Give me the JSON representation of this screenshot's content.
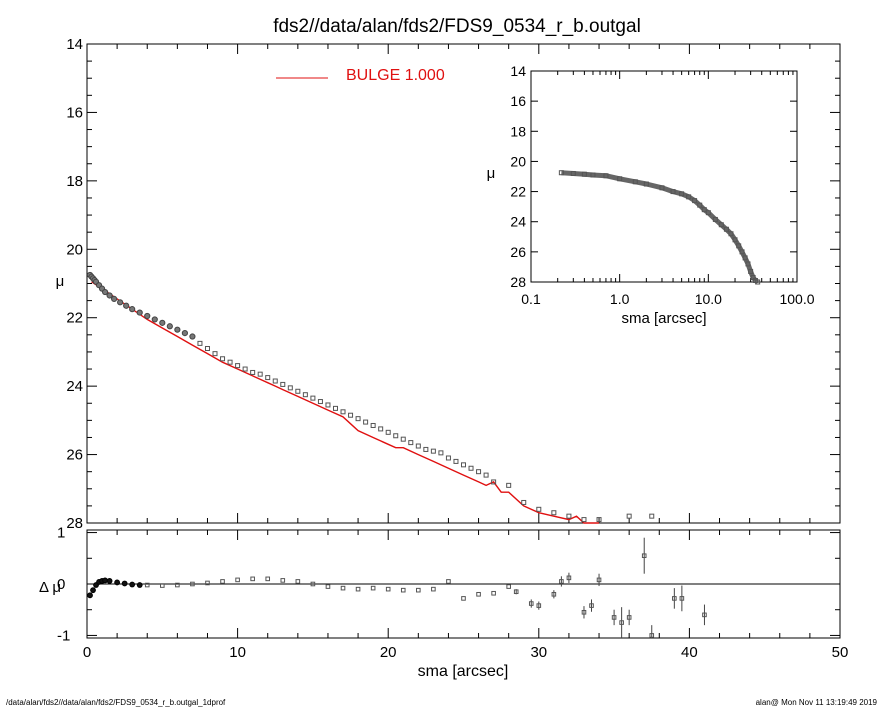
{
  "chart_data": [
    {
      "type": "scatter",
      "panel": "main",
      "title": "fds2//data/alan/fds2/FDS9_0534_r_b.outgal",
      "xlabel": "sma [arcsec]",
      "ylabel": "μ",
      "xlim": [
        0,
        50
      ],
      "ylim": [
        28,
        14
      ],
      "yticks": [
        "14",
        "16",
        "18",
        "20",
        "22",
        "24",
        "26",
        "28"
      ],
      "legend": {
        "label": "BULGE  1.000",
        "color": "#e01010",
        "placement": "top-center"
      },
      "series": [
        {
          "name": "observed profile",
          "x": [
            0.2,
            0.3,
            0.4,
            0.5,
            0.6,
            0.8,
            1.0,
            1.2,
            1.5,
            1.8,
            2.2,
            2.6,
            3.0,
            3.5,
            4.0,
            4.5,
            5.0,
            5.5,
            6.0,
            6.5,
            7.0,
            7.5,
            8.0,
            8.5,
            9.0,
            9.5,
            10.0,
            10.5,
            11.0,
            11.5,
            12.0,
            12.5,
            13.0,
            13.5,
            14.0,
            14.5,
            15.0,
            15.5,
            16.0,
            16.5,
            17.0,
            17.5,
            18.0,
            18.5,
            19.0,
            19.5,
            20.0,
            20.5,
            21.0,
            21.5,
            22.0,
            22.5,
            23.0,
            23.5,
            24.0,
            24.5,
            25.0,
            25.5,
            26.0,
            26.5,
            27.0,
            28.0,
            29.0,
            30.0,
            31.0,
            32.0,
            33.0,
            34.0,
            36.0,
            37.5
          ],
          "y": [
            20.75,
            20.8,
            20.85,
            20.9,
            20.95,
            21.05,
            21.15,
            21.25,
            21.35,
            21.45,
            21.55,
            21.65,
            21.75,
            21.85,
            21.95,
            22.05,
            22.15,
            22.25,
            22.35,
            22.45,
            22.55,
            22.75,
            22.9,
            23.05,
            23.2,
            23.3,
            23.4,
            23.5,
            23.6,
            23.65,
            23.75,
            23.85,
            23.95,
            24.05,
            24.15,
            24.25,
            24.35,
            24.45,
            24.55,
            24.65,
            24.75,
            24.85,
            24.95,
            25.05,
            25.15,
            25.25,
            25.35,
            25.45,
            25.55,
            25.65,
            25.75,
            25.85,
            25.9,
            25.95,
            26.1,
            26.2,
            26.3,
            26.4,
            26.5,
            26.6,
            26.8,
            26.9,
            27.4,
            27.6,
            27.7,
            27.8,
            27.9,
            27.9,
            27.8,
            27.8
          ]
        },
        {
          "name": "BULGE  1.000",
          "type": "line",
          "x": [
            0.3,
            1.0,
            2.0,
            3.0,
            4.0,
            5.0,
            6.0,
            7.0,
            8.0,
            9.0,
            10.0,
            11.0,
            12.0,
            12.5,
            13.0,
            14.0,
            15.0,
            16.0,
            17.0,
            17.5,
            18.0,
            19.0,
            20.0,
            20.5,
            21.0,
            22.0,
            23.0,
            24.0,
            25.0,
            26.0,
            26.5,
            27.0,
            27.5,
            28.0,
            29.0,
            30.0,
            31.0,
            32.0,
            32.5,
            33.0,
            34.0
          ],
          "y": [
            20.95,
            21.15,
            21.45,
            21.75,
            22.05,
            22.3,
            22.55,
            22.8,
            23.05,
            23.3,
            23.5,
            23.7,
            23.9,
            24.0,
            24.1,
            24.3,
            24.5,
            24.7,
            24.9,
            25.1,
            25.3,
            25.5,
            25.7,
            25.8,
            25.8,
            26.0,
            26.2,
            26.4,
            26.6,
            26.8,
            26.9,
            26.8,
            27.1,
            27.1,
            27.5,
            27.7,
            27.8,
            27.9,
            27.8,
            28.1,
            28.4
          ]
        }
      ]
    },
    {
      "type": "scatter",
      "panel": "inset",
      "xlabel": "sma [arcsec]",
      "ylabel": "μ",
      "xscale": "log",
      "xlim": [
        0.1,
        100
      ],
      "ylim": [
        28,
        14
      ],
      "xticks": [
        "0.1",
        "1.0",
        "10.0",
        "100.0"
      ],
      "yticks": [
        "14",
        "16",
        "18",
        "20",
        "22",
        "24",
        "26",
        "28"
      ],
      "series": [
        {
          "name": "observed profile (log)",
          "x": [
            0.22,
            0.3,
            0.4,
            0.5,
            0.7,
            1.0,
            1.5,
            2.0,
            3.0,
            4.0,
            5.0,
            6.0,
            7.0,
            8.0,
            9.0,
            10.0,
            12.0,
            14.0,
            16.0,
            18.0,
            20.0,
            22.0,
            24.0,
            26.0,
            28.0,
            30.0,
            32.0,
            34.0,
            36.0
          ],
          "y": [
            20.75,
            20.8,
            20.85,
            20.9,
            20.95,
            21.15,
            21.35,
            21.5,
            21.75,
            22.0,
            22.15,
            22.35,
            22.6,
            22.9,
            23.2,
            23.4,
            23.85,
            24.2,
            24.5,
            24.8,
            25.2,
            25.6,
            26.0,
            26.4,
            26.8,
            27.3,
            27.7,
            27.9,
            28.0
          ]
        }
      ]
    },
    {
      "type": "scatter",
      "panel": "residual",
      "xlabel": "sma [arcsec]",
      "ylabel": "Δ μ",
      "xlim": [
        0,
        50
      ],
      "ylim": [
        -1.05,
        1.05
      ],
      "xticks": [
        "0",
        "10",
        "20",
        "30",
        "40",
        "50"
      ],
      "yticks": [
        "1",
        "0",
        "-1"
      ],
      "series": [
        {
          "name": "residuals",
          "x": [
            0.2,
            0.4,
            0.6,
            0.8,
            1.0,
            1.2,
            1.5,
            2.0,
            2.5,
            3.0,
            3.5,
            4.0,
            5.0,
            6.0,
            7.0,
            8.0,
            9.0,
            10.0,
            11.0,
            12.0,
            13.0,
            14.0,
            15.0,
            16.0,
            17.0,
            18.0,
            19.0,
            20.0,
            21.0,
            22.0,
            23.0,
            24.0,
            25.0,
            26.0,
            27.0,
            28.0,
            28.5,
            29.5,
            30.0,
            31.0,
            31.5,
            32.0,
            33.0,
            33.5,
            34.0,
            35.0,
            35.5,
            36.0,
            37.0,
            37.5,
            39.0,
            39.5,
            41.0
          ],
          "y": [
            -0.22,
            -0.12,
            -0.02,
            0.04,
            0.06,
            0.07,
            0.06,
            0.03,
            0.01,
            -0.01,
            -0.02,
            -0.02,
            -0.03,
            -0.02,
            0.0,
            0.02,
            0.05,
            0.08,
            0.1,
            0.1,
            0.07,
            0.05,
            0.0,
            -0.05,
            -0.08,
            -0.1,
            -0.08,
            -0.1,
            -0.12,
            -0.12,
            -0.1,
            0.05,
            -0.28,
            -0.2,
            -0.18,
            -0.05,
            -0.15,
            -0.38,
            -0.42,
            -0.2,
            0.05,
            0.12,
            -0.55,
            -0.42,
            0.08,
            -0.65,
            -0.75,
            -0.65,
            0.55,
            -1.0,
            -0.28,
            -0.28,
            -0.6
          ],
          "err": [
            0.0,
            0.0,
            0.0,
            0.0,
            0.0,
            0.0,
            0.0,
            0.0,
            0.0,
            0.0,
            0.0,
            0.0,
            0.0,
            0.0,
            0.0,
            0.0,
            0.0,
            0.0,
            0.0,
            0.0,
            0.0,
            0.0,
            0.0,
            0.0,
            0.0,
            0.0,
            0.0,
            0.0,
            0.0,
            0.0,
            0.0,
            0.0,
            0.0,
            0.0,
            0.0,
            0.0,
            0.05,
            0.08,
            0.08,
            0.08,
            0.1,
            0.1,
            0.12,
            0.12,
            0.12,
            0.15,
            0.3,
            0.15,
            0.35,
            0.2,
            0.2,
            0.25,
            0.2
          ]
        }
      ]
    }
  ],
  "footer": {
    "left": "/data/alan/fds2//data/alan/fds2/FDS9_0534_r_b.outgal_1dprof",
    "right": "alan@  Mon Nov 11 13:19:49 2019"
  }
}
